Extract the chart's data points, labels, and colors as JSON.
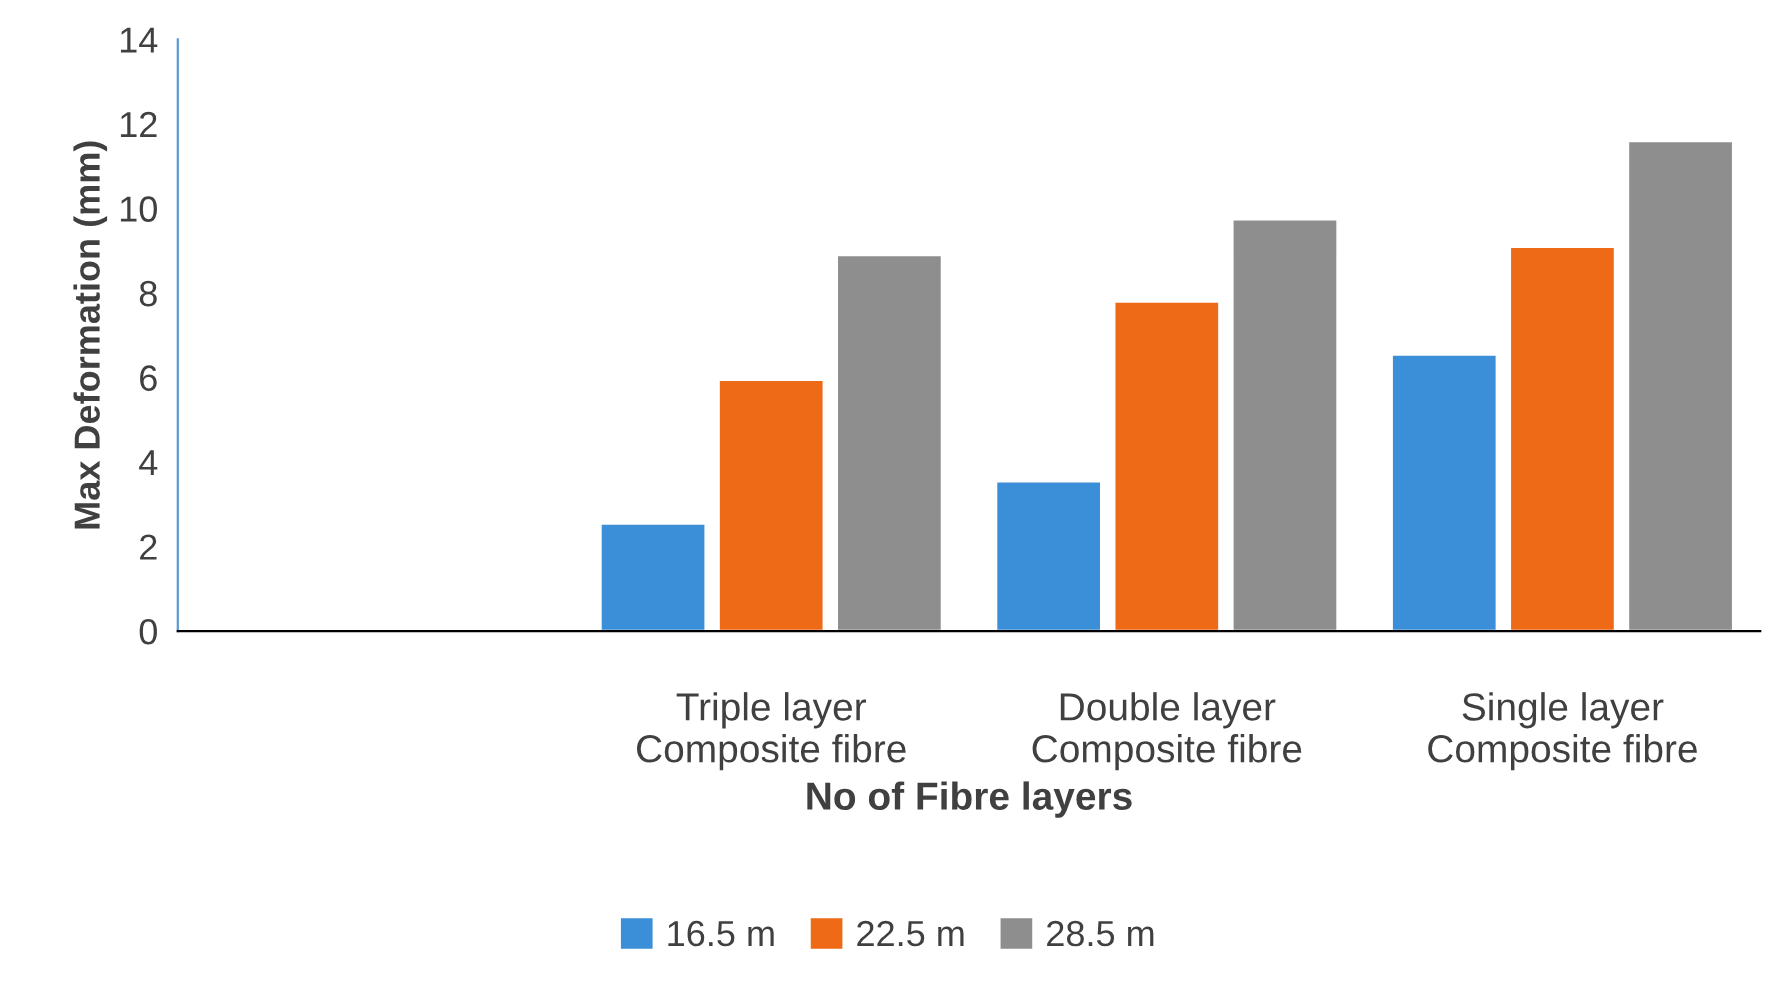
{
  "chart_data": {
    "type": "bar",
    "xlabel": "No of Fibre layers",
    "ylabel": "Max Deformation (mm)",
    "categories": [
      null,
      "Triple layer\nComposite fibre",
      "Double layer\nComposite fibre",
      "Single layer\nComposite fibre"
    ],
    "series": [
      {
        "name": "16.5 m",
        "color": "#3b8fd8",
        "values": [
          null,
          2.55,
          3.55,
          6.55
        ]
      },
      {
        "name": "22.5 m",
        "color": "#ee6a17",
        "values": [
          null,
          5.95,
          7.8,
          9.1
        ]
      },
      {
        "name": "28.5 m",
        "color": "#8e8e8e",
        "values": [
          null,
          8.9,
          9.75,
          11.6
        ]
      }
    ],
    "ylim": [
      0,
      14
    ],
    "yticks": [
      0,
      2,
      4,
      6,
      8,
      10,
      12,
      14
    ],
    "grid": false,
    "legend": "bottom"
  }
}
